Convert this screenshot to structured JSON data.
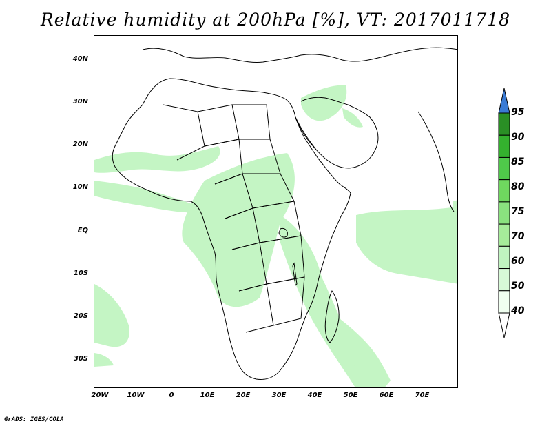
{
  "title": "Relative humidity at 200hPa [%], VT: 2017011718",
  "credit": "GrADS: IGES/COLA",
  "map": {
    "projection": "lat-lon",
    "lon_range": [
      -22,
      80
    ],
    "lat_range": [
      -37,
      46
    ],
    "lat_labels": [
      "40N",
      "30N",
      "20N",
      "10N",
      "EQ",
      "10S",
      "20S",
      "30S"
    ],
    "lon_labels": [
      "20W",
      "10W",
      "0",
      "10E",
      "20E",
      "30E",
      "40E",
      "50E",
      "60E",
      "70E"
    ],
    "field": "Relative humidity",
    "level": "200hPa",
    "units": "%",
    "valid_time": "2017011718"
  },
  "colorbar": {
    "levels": [
      "40",
      "50",
      "60",
      "70",
      "75",
      "80",
      "85",
      "90",
      "95"
    ],
    "colors": [
      "#f0fff0",
      "#d7f9d7",
      "#c0f4c0",
      "#a6ec9a",
      "#8ae27f",
      "#6fd85f",
      "#4fc94a",
      "#34b12e",
      "#2a8f25"
    ],
    "over_color": "#3a7bd5",
    "under_color": "#ffffff"
  },
  "colors": {
    "humid_light": "#c4f5c4",
    "humid_mid": "#a7eba7",
    "coast": "#000000"
  }
}
